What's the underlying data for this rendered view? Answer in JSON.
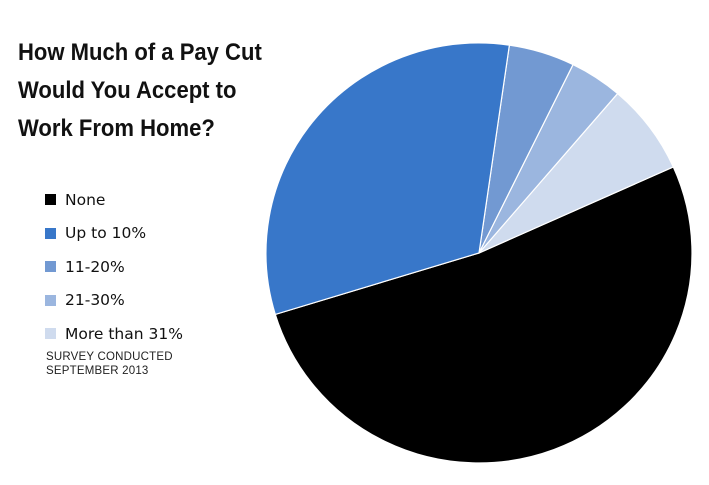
{
  "title_lines": [
    "How Much of a Pay Cut",
    "Would You Accept to",
    "Work From Home?"
  ],
  "footnote_lines": [
    "SURVEY CONDUCTED",
    "SEPTEMBER 2013"
  ],
  "colors": {
    "none": "#000000",
    "up_to_10": "#3877c9",
    "11_20": "#7299d2",
    "21_30": "#9bb6df",
    "more_than_31": "#cfdbee"
  },
  "chart_data": {
    "type": "pie",
    "title": "How Much of a Pay Cut Would You Accept to Work From Home?",
    "categories": [
      "None",
      "Up to 10%",
      "11-20%",
      "21-30%",
      "More than 31%"
    ],
    "values": [
      52,
      32,
      5,
      4,
      7
    ],
    "colors": [
      "#000000",
      "#3877c9",
      "#7299d2",
      "#9bb6df",
      "#cfdbee"
    ],
    "legend_position": "left",
    "note": "SURVEY CONDUCTED SEPTEMBER 2013"
  }
}
